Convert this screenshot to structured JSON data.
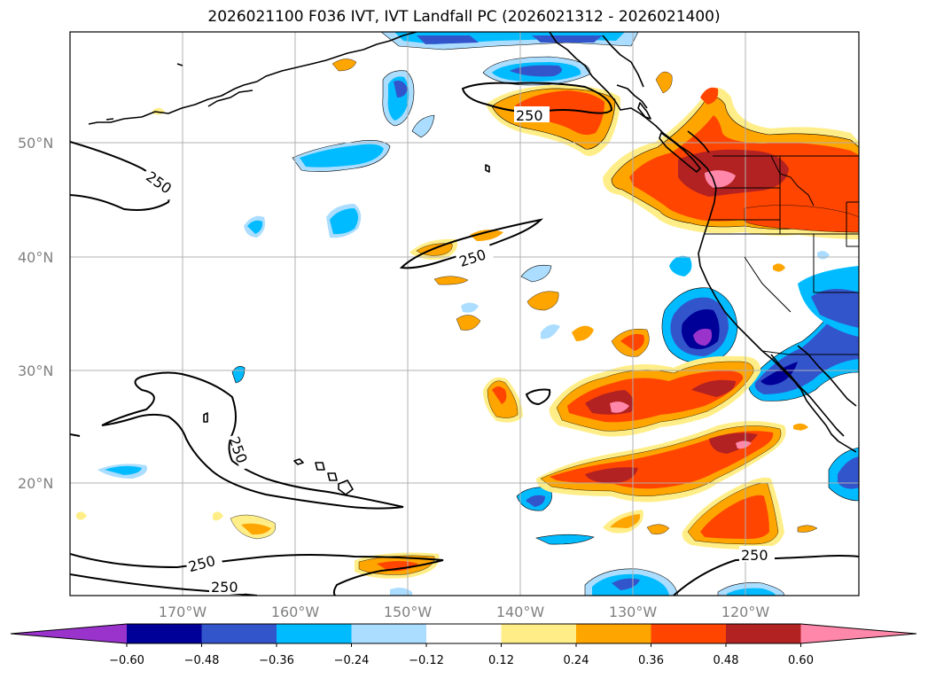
{
  "title": "2026021100 F036 IVT, IVT Landfall PC (2026021312 - 2026021400)",
  "map": {
    "lat_ticks": [
      "50°N",
      "40°N",
      "30°N",
      "20°N"
    ],
    "lon_ticks": [
      "170°W",
      "160°W",
      "150°W",
      "140°W",
      "130°W",
      "120°W"
    ],
    "contour_label": "250",
    "contour_field": "IVT",
    "shaded_field": "IVT Landfall PC"
  },
  "colorbar": {
    "levels": [
      "−0.60",
      "−0.48",
      "−0.36",
      "−0.24",
      "−0.12",
      "0.12",
      "0.24",
      "0.36",
      "0.48",
      "0.60"
    ],
    "colors": [
      "#9933cc",
      "#000099",
      "#3355cc",
      "#00bbff",
      "#aaddff",
      "#ffffff",
      "#ffee88",
      "#ffa500",
      "#ff4500",
      "#b22222",
      "#ff88aa"
    ]
  }
}
